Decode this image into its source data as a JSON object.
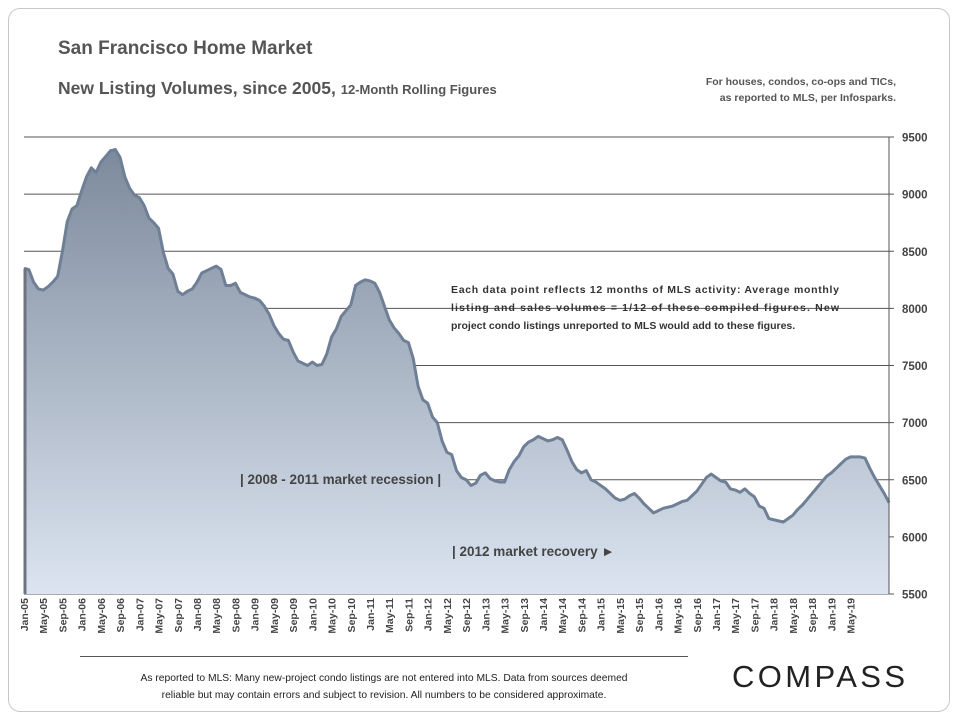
{
  "header": {
    "title": "San Francisco Home Market",
    "subtitle_main": "New Listing Volumes, since 2005,",
    "subtitle_small": "12-Month Rolling Figures",
    "note_line1": "For houses, condos, co-ops and TICs,",
    "note_line2": "as reported to MLS, per Infosparks."
  },
  "footer": {
    "line1": "As reported to MLS:  Many new-project condo listings are not entered  into MLS.  Data from sources deemed",
    "line2": "reliable but may contain errors and subject to revision.  All numbers to be considered approximate."
  },
  "logo": {
    "text": "COMPASS"
  },
  "chart_data": {
    "type": "area",
    "title": "San Francisco Home Market",
    "subtitle": "New Listing Volumes, since 2005, 12-Month Rolling Figures",
    "xlabel": "",
    "ylabel": "",
    "ylim": [
      5500,
      9500
    ],
    "yticks": [
      9500,
      9000,
      8500,
      8000,
      7500,
      7000,
      6500,
      6000,
      5500
    ],
    "y_axis_side": "right",
    "grid": true,
    "x_tick_labels": [
      "Jan-05",
      "May-05",
      "Sep-05",
      "Jan-06",
      "May-06",
      "Sep-06",
      "Jan-07",
      "May-07",
      "Sep-07",
      "Jan-08",
      "May-08",
      "Sep-08",
      "Jan-09",
      "May-09",
      "Sep-09",
      "Jan-10",
      "May-10",
      "Sep-10",
      "Jan-11",
      "May-11",
      "Sep-11",
      "Jan-12",
      "May-12",
      "Sep-12",
      "Jan-13",
      "May-13",
      "Sep-13",
      "Jan-14",
      "May-14",
      "Sep-14",
      "Jan-15",
      "May-15",
      "Sep-15",
      "Jan-16",
      "May-16",
      "Sep-16",
      "Jan-17",
      "May-17",
      "Sep-17",
      "Jan-18",
      "May-18",
      "Sep-18",
      "Jan-19",
      "May-19"
    ],
    "series": [
      {
        "name": "",
        "values": [
          8350,
          8340,
          8230,
          8170,
          8160,
          8190,
          8230,
          8280,
          8500,
          8760,
          8870,
          8900,
          9030,
          9150,
          9230,
          9190,
          9280,
          9330,
          9380,
          9390,
          9320,
          9150,
          9050,
          8990,
          8970,
          8900,
          8790,
          8750,
          8700,
          8490,
          8350,
          8300,
          8150,
          8120,
          8150,
          8170,
          8230,
          8310,
          8330,
          8350,
          8370,
          8340,
          8200,
          8200,
          8220,
          8140,
          8120,
          8100,
          8090,
          8070,
          8020,
          7950,
          7850,
          7780,
          7730,
          7720,
          7620,
          7540,
          7520,
          7500,
          7530,
          7500,
          7510,
          7600,
          7750,
          7820,
          7930,
          7980,
          8030,
          8200,
          8230,
          8250,
          8240,
          8220,
          8140,
          8020,
          7900,
          7830,
          7780,
          7720,
          7700,
          7560,
          7320,
          7200,
          7170,
          7050,
          7000,
          6840,
          6740,
          6720,
          6580,
          6520,
          6500,
          6450,
          6470,
          6540,
          6560,
          6510,
          6490,
          6480,
          6480,
          6590,
          6660,
          6710,
          6790,
          6830,
          6850,
          6880,
          6860,
          6840,
          6850,
          6870,
          6850,
          6760,
          6660,
          6590,
          6560,
          6580,
          6500,
          6480,
          6450,
          6420,
          6380,
          6340,
          6320,
          6330,
          6360,
          6380,
          6340,
          6290,
          6250,
          6210,
          6230,
          6250,
          6260,
          6270,
          6290,
          6310,
          6320,
          6360,
          6400,
          6460,
          6520,
          6550,
          6520,
          6490,
          6480,
          6420,
          6410,
          6390,
          6420,
          6380,
          6350,
          6270,
          6250,
          6160,
          6150,
          6140,
          6130,
          6160,
          6190,
          6240,
          6280,
          6330,
          6380,
          6430,
          6480,
          6530,
          6560,
          6600,
          6640,
          6680,
          6700,
          6700,
          6700,
          6690,
          6600,
          6520,
          6450,
          6380,
          6300
        ]
      }
    ],
    "annotations": [
      "Each data point reflects 12 months of MLS activity:  Average monthly listing and sales volumes = 1/12 of these compiled figures. New project condo listings unreported to MLS would add to these figures.",
      "| 2008 - 2011 market recession |",
      "| 2012 market recovery ►"
    ],
    "colors": {
      "line": "#6e7f96",
      "fill_top": "#7d8a9c",
      "fill_bottom": "#dbe4f0",
      "grid": "#555555"
    }
  }
}
